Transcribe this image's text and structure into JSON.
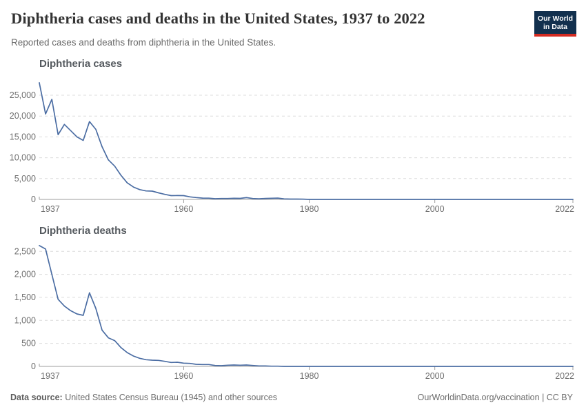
{
  "header": {
    "title": "Diphtheria cases and deaths in the United States, 1937 to 2022",
    "subtitle": "Reported cases and deaths from diphtheria in the United States.",
    "logo": {
      "line1": "Our World",
      "line2": "in Data"
    }
  },
  "footer": {
    "source_label": "Data source:",
    "source_text": " United States Census Bureau (1945) and other sources",
    "credit": "OurWorldinData.org/vaccination | CC BY"
  },
  "colors": {
    "line": "#4b6da3",
    "grid": "#dcdcdc",
    "axis": "#9e9e9e",
    "tick_label": "#6e6e6e",
    "logo_bg": "#12304e",
    "logo_red": "#d42b21"
  },
  "chart_data": [
    {
      "type": "line",
      "title": "Diphtheria cases",
      "x_range": [
        1937,
        2022
      ],
      "x_frequency": "annual",
      "values": [
        28000,
        20500,
        24000,
        15536,
        18000,
        16500,
        15000,
        14150,
        18675,
        16800,
        12619,
        9493,
        7989,
        5796,
        3983,
        2960,
        2355,
        2041,
        1984,
        1568,
        1211,
        918,
        934,
        918,
        617,
        444,
        314,
        293,
        164,
        209,
        219,
        260,
        241,
        435,
        215,
        152,
        228,
        272,
        307,
        128,
        84,
        76,
        59,
        3,
        5,
        2,
        5,
        1,
        3,
        0,
        3,
        2,
        3,
        4,
        2,
        4,
        0,
        2,
        0,
        2,
        4,
        1,
        1,
        1,
        2,
        1,
        1,
        0,
        0,
        0,
        0,
        0,
        0,
        0,
        0,
        1,
        0,
        1,
        0,
        0,
        0,
        1,
        2,
        1,
        0,
        2
      ],
      "ylim": [
        0,
        28500
      ],
      "yticks": [
        0,
        5000,
        10000,
        15000,
        20000,
        25000
      ],
      "ytick_labels": [
        "0",
        "5,000",
        "10,000",
        "15,000",
        "20,000",
        "25,000"
      ],
      "xticks": [
        1937,
        1960,
        1980,
        2000,
        2022
      ],
      "grid": "horizontal-dashed",
      "legend": "none"
    },
    {
      "type": "line",
      "title": "Diphtheria deaths",
      "x_range": [
        1937,
        2022
      ],
      "x_frequency": "annual",
      "values": [
        2625,
        2550,
        2000,
        1457,
        1310,
        1210,
        1140,
        1110,
        1600,
        1260,
        785,
        620,
        560,
        410,
        300,
        225,
        175,
        145,
        135,
        130,
        110,
        85,
        90,
        70,
        65,
        45,
        40,
        40,
        20,
        15,
        25,
        30,
        25,
        30,
        20,
        10,
        10,
        5,
        5,
        0,
        0,
        0,
        0,
        0,
        0,
        0,
        0,
        0,
        0,
        0,
        0,
        0,
        0,
        0,
        0,
        0,
        0,
        0,
        0,
        0,
        0,
        0,
        0,
        0,
        0,
        0,
        0,
        0,
        0,
        0,
        0,
        0,
        0,
        0,
        0,
        0,
        0,
        0,
        0,
        0,
        0,
        0,
        0,
        0,
        0,
        0
      ],
      "ylim": [
        0,
        2760
      ],
      "yticks": [
        0,
        500,
        1000,
        1500,
        2000,
        2500
      ],
      "ytick_labels": [
        "0",
        "500",
        "1,000",
        "1,500",
        "2,000",
        "2,500"
      ],
      "xticks": [
        1937,
        1960,
        1980,
        2000,
        2022
      ],
      "grid": "horizontal-dashed",
      "legend": "none"
    }
  ]
}
